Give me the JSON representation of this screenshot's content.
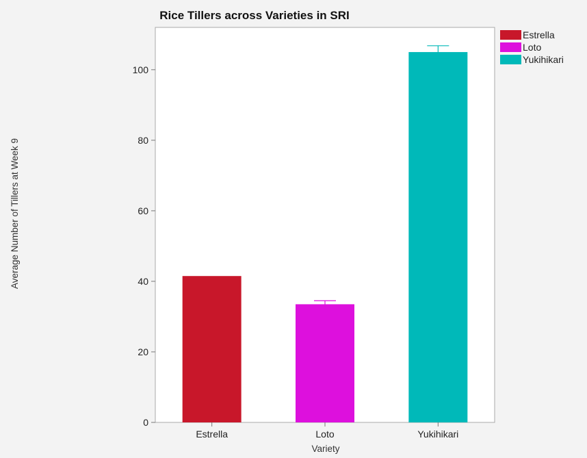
{
  "chart_data": {
    "type": "bar",
    "title": "Rice Tillers across Varieties in SRI",
    "xlabel": "Variety",
    "ylabel": "Average Number of Tillers at Week 9",
    "categories": [
      "Estrella",
      "Loto",
      "Yukihikari"
    ],
    "values": [
      41.5,
      33.5,
      105.0
    ],
    "error": [
      0,
      1.0,
      1.8
    ],
    "colors": [
      "#c8172a",
      "#dd10dd",
      "#00b9b9"
    ],
    "ylim": [
      0,
      112
    ],
    "yticks": [
      0,
      20,
      40,
      60,
      80,
      100
    ],
    "yticklabels": [
      "0",
      "20",
      "40",
      "60",
      "80",
      "100"
    ],
    "grid": false,
    "legend": {
      "placement": "right",
      "entries": [
        "Estrella",
        "Loto",
        "Yukihikari"
      ]
    }
  }
}
